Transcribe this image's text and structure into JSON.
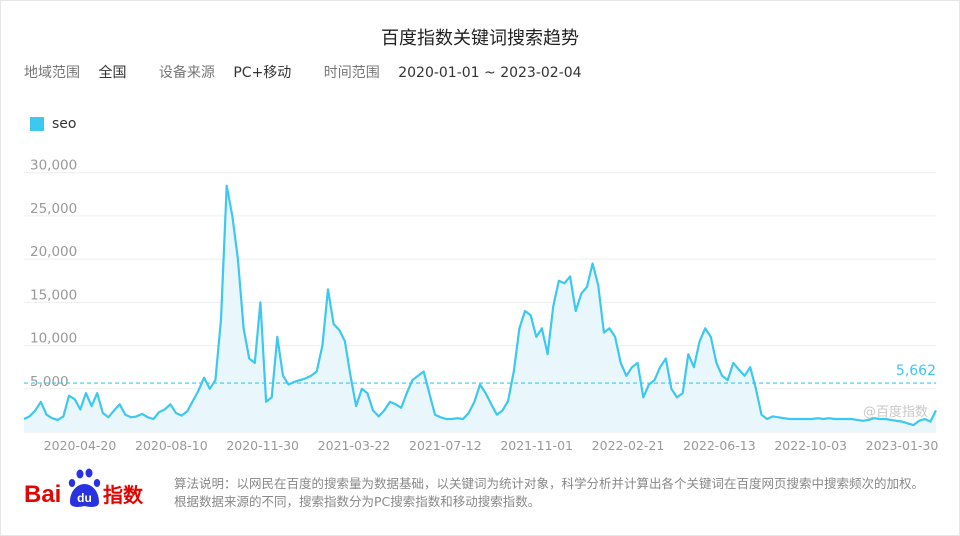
{
  "header": {
    "title": "百度指数关键词搜索趋势"
  },
  "filters": {
    "region_label": "地域范围",
    "region_value": "全国",
    "device_label": "设备来源",
    "device_value": "PC+移动",
    "time_label": "时间范围",
    "time_value": "2020-01-01 ~ 2023-02-04"
  },
  "footer": {
    "logo_text": "Bai",
    "logo_du": "du",
    "logo_suffix": "指数",
    "note": "算法说明：以网民在百度的搜索量为数据基础，以关键词为统计对象，科学分析并计算出各个关键词在百度网页搜索中搜索频次的加权。根据数据来源的不同，搜索指数分为PC搜索指数和移动搜索指数。"
  },
  "colors": {
    "series": "#3cc8f0",
    "fill": "#e9f7fc",
    "avg": "#3cc8f0",
    "grid": "#eeeeee",
    "axis_text": "#999999",
    "watermark": "#c8c8c8"
  },
  "chart_data": {
    "type": "area",
    "series": [
      {
        "name": "seo",
        "values": [
          1500,
          1800,
          2500,
          3500,
          2000,
          1600,
          1400,
          1800,
          4200,
          3800,
          2600,
          4500,
          3000,
          4500,
          2200,
          1700,
          2500,
          3200,
          2000,
          1700,
          1800,
          2100,
          1700,
          1500,
          2300,
          2600,
          3200,
          2200,
          1900,
          2400,
          3600,
          4800,
          6300,
          5000,
          6000,
          13000,
          28500,
          25000,
          20000,
          12000,
          8500,
          8000,
          15000,
          3500,
          4000,
          11000,
          6500,
          5500,
          5800,
          6000,
          6200,
          6500,
          7000,
          10000,
          16500,
          12500,
          11800,
          10500,
          6500,
          3000,
          5000,
          4500,
          2500,
          1800,
          2500,
          3500,
          3200,
          2800,
          4500,
          6000,
          6500,
          7000,
          4500,
          2000,
          1700,
          1500,
          1500,
          1600,
          1500,
          2200,
          3500,
          5500,
          4500,
          3200,
          2000,
          2500,
          3600,
          7000,
          12000,
          14000,
          13500,
          11000,
          12000,
          9000,
          14500,
          17500,
          17200,
          18000,
          14000,
          16000,
          16800,
          19500,
          17000,
          11500,
          12000,
          11000,
          8000,
          6500,
          7500,
          8000,
          4000,
          5500,
          6000,
          7500,
          8500,
          5000,
          4000,
          4500,
          9000,
          7500,
          10500,
          12000,
          11000,
          8000,
          6500,
          6000,
          8000,
          7200,
          6500,
          7500,
          5000,
          2000,
          1500,
          1800,
          1700,
          1600,
          1500,
          1500,
          1500,
          1500,
          1500,
          1600,
          1500,
          1600,
          1500,
          1500,
          1500,
          1500,
          1400,
          1300,
          1400,
          1600,
          1500,
          1500,
          1400,
          1300,
          1200,
          1000,
          800,
          1300,
          1500,
          1200,
          2500
        ]
      }
    ],
    "x_ticks": [
      "2020-04-20",
      "2020-08-10",
      "2020-11-30",
      "2021-03-22",
      "2021-07-12",
      "2021-11-01",
      "2022-02-21",
      "2022-06-13",
      "2022-10-03",
      "2023-01-30"
    ],
    "y_ticks": [
      5000,
      10000,
      15000,
      20000,
      25000,
      30000
    ],
    "y_tick_labels": [
      "5,000",
      "10,000",
      "15,000",
      "20,000",
      "25,000",
      "30,000"
    ],
    "ylim": [
      0,
      31000
    ],
    "average": 5662,
    "average_label": "5,662",
    "legend_position": "top-left",
    "watermark": "@百度指数",
    "grid": true
  }
}
